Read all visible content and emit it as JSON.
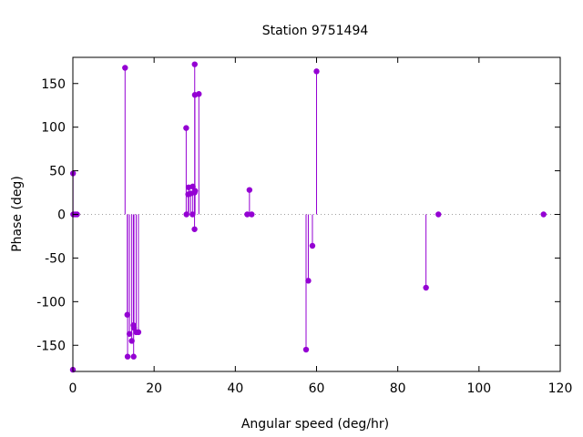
{
  "chart_data": {
    "type": "scatter",
    "style": "impulses-with-points",
    "title": "Station 9751494",
    "xlabel": "Angular speed (deg/hr)",
    "ylabel": "Phase (deg)",
    "xlim": [
      0,
      120
    ],
    "ylim": [
      -180,
      180
    ],
    "xticks": [
      0,
      20,
      40,
      60,
      80,
      100,
      120
    ],
    "yticks": [
      -150,
      -100,
      -50,
      0,
      50,
      100,
      150
    ],
    "grid": false,
    "zero_line": "dotted",
    "color": "#9400d3",
    "series": [
      {
        "points": [
          [
            0.0,
            -178
          ],
          [
            0.04,
            47
          ],
          [
            0.08,
            0
          ],
          [
            0.54,
            0
          ],
          [
            1.02,
            0
          ],
          [
            12.85,
            168
          ],
          [
            13.4,
            -115
          ],
          [
            13.47,
            -163
          ],
          [
            13.94,
            -137
          ],
          [
            14.5,
            -145
          ],
          [
            14.92,
            -127
          ],
          [
            14.96,
            -163
          ],
          [
            15.04,
            -130
          ],
          [
            15.59,
            -135
          ],
          [
            16.14,
            -135
          ],
          [
            27.9,
            99
          ],
          [
            27.97,
            0
          ],
          [
            28.4,
            23
          ],
          [
            28.51,
            31
          ],
          [
            28.99,
            24
          ],
          [
            29.46,
            0
          ],
          [
            29.53,
            32
          ],
          [
            29.96,
            -17
          ],
          [
            29.96,
            25
          ],
          [
            30.0,
            172
          ],
          [
            30.04,
            137
          ],
          [
            30.08,
            27
          ],
          [
            31.02,
            138
          ],
          [
            42.93,
            0
          ],
          [
            43.48,
            28
          ],
          [
            44.03,
            0
          ],
          [
            57.42,
            -155
          ],
          [
            57.97,
            -76
          ],
          [
            58.98,
            -36
          ],
          [
            60.0,
            164
          ],
          [
            86.95,
            -84
          ],
          [
            90.0,
            0
          ],
          [
            115.9,
            0
          ]
        ]
      }
    ]
  }
}
